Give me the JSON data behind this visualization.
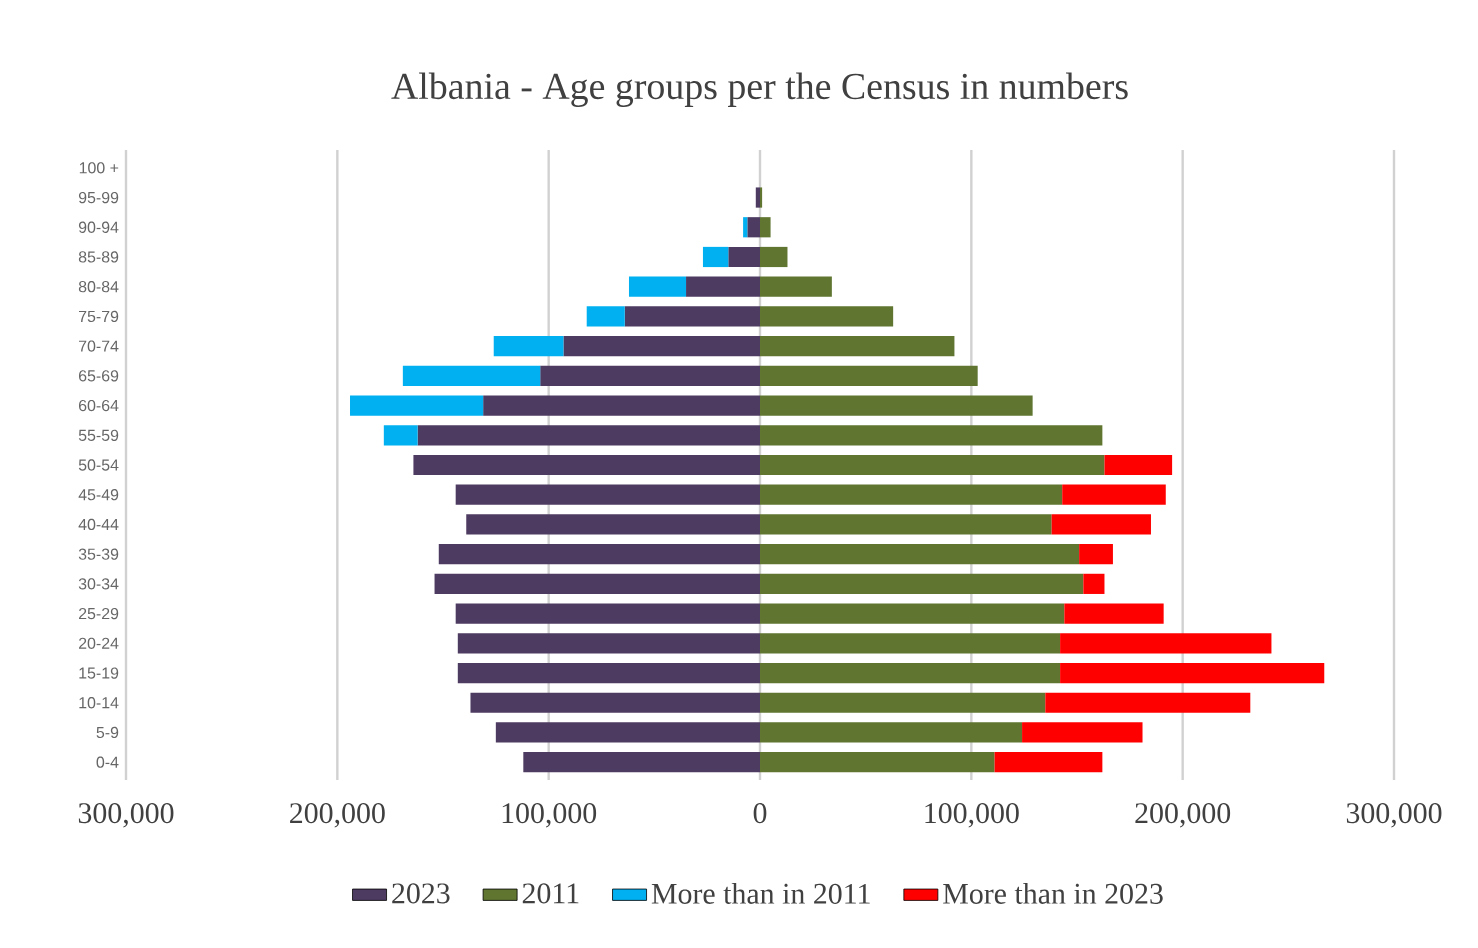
{
  "chart_data": {
    "type": "bar",
    "orientation": "horizontal",
    "stacked": true,
    "title": "Albania - Age groups per the Census in numbers",
    "categories": [
      "100 +",
      "95-99",
      "90-94",
      "85-89",
      "80-84",
      "75-79",
      "70-74",
      "65-69",
      "60-64",
      "55-59",
      "50-54",
      "45-49",
      "40-44",
      "35-39",
      "30-34",
      "25-29",
      "20-24",
      "15-19",
      "10-14",
      "5-9",
      "0-4"
    ],
    "series": [
      {
        "name": "2023",
        "color": "#4e3b62",
        "values": [
          0,
          -2000,
          -6000,
          -15000,
          -35000,
          -64000,
          -93000,
          -104000,
          -131000,
          -162000,
          -164000,
          -144000,
          -139000,
          -152000,
          -154000,
          -144000,
          -143000,
          -143000,
          -137000,
          -125000,
          -112000
        ]
      },
      {
        "name": "2011",
        "color": "#5f7530",
        "values": [
          0,
          1000,
          5000,
          13000,
          34000,
          63000,
          92000,
          103000,
          129000,
          162000,
          163000,
          143000,
          138000,
          151000,
          153000,
          144000,
          142000,
          142000,
          135000,
          124000,
          111000
        ]
      },
      {
        "name": "More than in 2011",
        "color": "#00b0f0",
        "values": [
          null,
          null,
          -2000,
          -12000,
          -27000,
          -18000,
          -33000,
          -65000,
          -63000,
          -16000,
          null,
          null,
          null,
          null,
          null,
          null,
          null,
          null,
          null,
          null,
          null
        ]
      },
      {
        "name": "More than in 2023",
        "color": "#ff0000",
        "values": [
          null,
          null,
          null,
          null,
          null,
          null,
          null,
          null,
          null,
          null,
          32000,
          49000,
          47000,
          16000,
          10000,
          47000,
          100000,
          125000,
          97000,
          57000,
          51000
        ]
      }
    ],
    "xlim": [
      -300000,
      300000
    ],
    "xticks": [
      {
        "value": -300000,
        "label": "300,000"
      },
      {
        "value": -200000,
        "label": "200,000"
      },
      {
        "value": -100000,
        "label": "100,000"
      },
      0,
      {
        "value": 100000,
        "label": "100,000"
      },
      {
        "value": 200000,
        "label": "200,000"
      },
      {
        "value": 300000,
        "label": "300,000"
      }
    ],
    "grid": "x",
    "legend": "bottom"
  }
}
